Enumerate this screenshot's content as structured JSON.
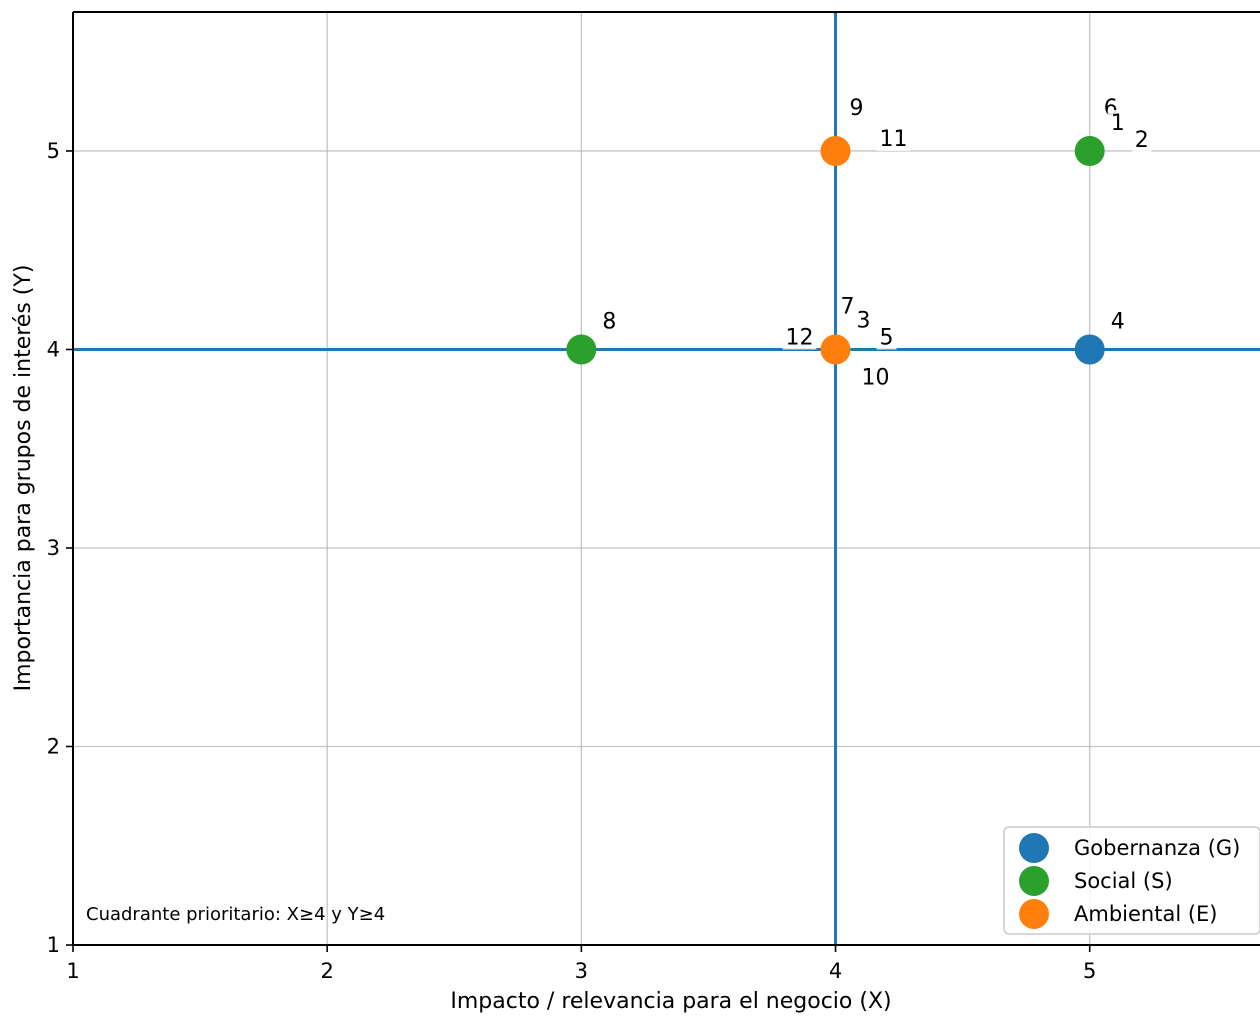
{
  "chart_data": {
    "type": "scatter",
    "title": "",
    "xlabel": "Impacto / relevancia para el negocio (X)",
    "ylabel": "Importancia para grupos de interés (Y)",
    "xlim": [
      1,
      5.67
    ],
    "ylim": [
      1,
      5.7
    ],
    "x_ticks": [
      1,
      2,
      3,
      4,
      5
    ],
    "y_ticks": [
      1,
      2,
      3,
      4,
      5
    ],
    "grid": true,
    "reference_lines": {
      "x": 4,
      "y": 4,
      "color": "#1f77b4"
    },
    "annotation": "Cuadrante prioritario: X≥4 y Y≥4",
    "legend_position": "bottom-right",
    "series": [
      {
        "name": "Gobernanza (G)",
        "color": "#1f77b4",
        "points": [
          {
            "x": 5,
            "y": 4
          }
        ]
      },
      {
        "name": "Social (S)",
        "color": "#2ca02c",
        "points": [
          {
            "x": 5,
            "y": 5
          },
          {
            "x": 3,
            "y": 4
          }
        ]
      },
      {
        "name": "Ambiental (E)",
        "color": "#ff7f0e",
        "points": [
          {
            "x": 4,
            "y": 5
          },
          {
            "x": 4,
            "y": 4
          }
        ]
      }
    ],
    "point_labels": [
      {
        "text": "6",
        "x": 5,
        "y": 5,
        "placement": "upper-right-high"
      },
      {
        "text": "1",
        "x": 5,
        "y": 5,
        "placement": "upper-right"
      },
      {
        "text": "2",
        "x": 5,
        "y": 5,
        "placement": "right-up"
      },
      {
        "text": "9",
        "x": 4,
        "y": 5,
        "placement": "upper-right-high"
      },
      {
        "text": "11",
        "x": 4,
        "y": 5,
        "placement": "right-up-far"
      },
      {
        "text": "8",
        "x": 3,
        "y": 4,
        "placement": "upper-right"
      },
      {
        "text": "7",
        "x": 4,
        "y": 4,
        "placement": "upper-right-highest"
      },
      {
        "text": "3",
        "x": 4,
        "y": 4,
        "placement": "upper-right-mid"
      },
      {
        "text": "5",
        "x": 4,
        "y": 4,
        "placement": "right-up-far"
      },
      {
        "text": "12",
        "x": 4,
        "y": 4,
        "placement": "left-up"
      },
      {
        "text": "10",
        "x": 4,
        "y": 4,
        "placement": "lower-right"
      },
      {
        "text": "4",
        "x": 5,
        "y": 4,
        "placement": "upper-right"
      }
    ]
  }
}
